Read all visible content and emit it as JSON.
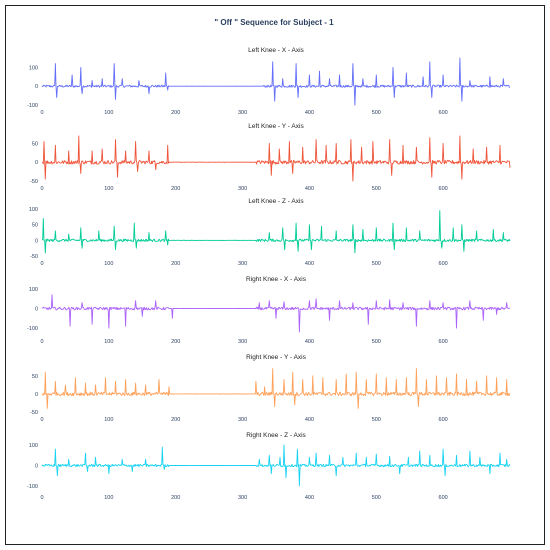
{
  "title": "\" Off \" Sequence for Subject - 1",
  "chart_data": [
    {
      "type": "line",
      "title": "Left Knee - X - Axis",
      "color": "#636efa",
      "xlim": [
        0,
        700
      ],
      "ylim": [
        -100,
        150
      ],
      "x_ticks": [
        0,
        100,
        200,
        300,
        400,
        500,
        600
      ],
      "y_ticks": [
        -100,
        0,
        100
      ],
      "baseline": 0,
      "flat_range": [
        190,
        330
      ],
      "noise": 6,
      "spikes": [
        [
          20,
          120
        ],
        [
          22,
          -60
        ],
        [
          45,
          60
        ],
        [
          58,
          100
        ],
        [
          60,
          -40
        ],
        [
          75,
          30
        ],
        [
          90,
          40
        ],
        [
          108,
          120
        ],
        [
          110,
          -70
        ],
        [
          120,
          40
        ],
        [
          145,
          30
        ],
        [
          160,
          -40
        ],
        [
          185,
          70
        ],
        [
          188,
          -20
        ],
        [
          345,
          130
        ],
        [
          348,
          -80
        ],
        [
          360,
          40
        ],
        [
          380,
          120
        ],
        [
          383,
          -60
        ],
        [
          400,
          60
        ],
        [
          415,
          80
        ],
        [
          430,
          40
        ],
        [
          445,
          60
        ],
        [
          465,
          120
        ],
        [
          468,
          -100
        ],
        [
          480,
          40
        ],
        [
          500,
          60
        ],
        [
          525,
          100
        ],
        [
          527,
          -60
        ],
        [
          545,
          70
        ],
        [
          570,
          50
        ],
        [
          580,
          130
        ],
        [
          583,
          -60
        ],
        [
          600,
          60
        ],
        [
          625,
          150
        ],
        [
          628,
          -80
        ],
        [
          640,
          30
        ],
        [
          670,
          50
        ],
        [
          690,
          40
        ]
      ]
    },
    {
      "type": "line",
      "title": "Left Knee - Y - Axis",
      "color": "#ef553b",
      "xlim": [
        0,
        700
      ],
      "ylim": [
        -50,
        75
      ],
      "x_ticks": [
        0,
        100,
        200,
        300,
        400,
        500,
        600
      ],
      "y_ticks": [
        -50,
        0,
        50
      ],
      "baseline": 0,
      "flat_range": [
        190,
        320
      ],
      "noise": 5,
      "spikes": [
        [
          3,
          55
        ],
        [
          5,
          -45
        ],
        [
          20,
          45
        ],
        [
          40,
          30
        ],
        [
          55,
          70
        ],
        [
          58,
          -30
        ],
        [
          75,
          30
        ],
        [
          90,
          35
        ],
        [
          110,
          60
        ],
        [
          113,
          -40
        ],
        [
          125,
          30
        ],
        [
          140,
          55
        ],
        [
          143,
          -25
        ],
        [
          160,
          30
        ],
        [
          170,
          -20
        ],
        [
          188,
          45
        ],
        [
          340,
          50
        ],
        [
          343,
          -35
        ],
        [
          355,
          35
        ],
        [
          370,
          55
        ],
        [
          375,
          -30
        ],
        [
          390,
          40
        ],
        [
          410,
          60
        ],
        [
          425,
          45
        ],
        [
          440,
          50
        ],
        [
          462,
          60
        ],
        [
          465,
          -50
        ],
        [
          478,
          40
        ],
        [
          495,
          55
        ],
        [
          520,
          60
        ],
        [
          523,
          -35
        ],
        [
          540,
          45
        ],
        [
          560,
          40
        ],
        [
          580,
          65
        ],
        [
          583,
          -40
        ],
        [
          600,
          50
        ],
        [
          625,
          70
        ],
        [
          628,
          -45
        ],
        [
          645,
          35
        ],
        [
          665,
          40
        ],
        [
          685,
          45
        ],
        [
          700,
          -15
        ]
      ]
    },
    {
      "type": "line",
      "title": "Left Knee - Z - Axis",
      "color": "#00cc96",
      "xlim": [
        0,
        700
      ],
      "ylim": [
        -50,
        100
      ],
      "x_ticks": [
        0,
        100,
        200,
        300,
        400,
        500,
        600
      ],
      "y_ticks": [
        -50,
        0,
        50,
        100
      ],
      "baseline": 0,
      "flat_range": [
        190,
        320
      ],
      "noise": 4,
      "spikes": [
        [
          2,
          70
        ],
        [
          5,
          -40
        ],
        [
          20,
          30
        ],
        [
          40,
          20
        ],
        [
          58,
          40
        ],
        [
          60,
          -25
        ],
        [
          85,
          30
        ],
        [
          108,
          45
        ],
        [
          110,
          -30
        ],
        [
          138,
          55
        ],
        [
          141,
          -25
        ],
        [
          160,
          25
        ],
        [
          185,
          30
        ],
        [
          188,
          -15
        ],
        [
          340,
          25
        ],
        [
          360,
          40
        ],
        [
          363,
          -30
        ],
        [
          380,
          55
        ],
        [
          383,
          -35
        ],
        [
          400,
          50
        ],
        [
          403,
          -30
        ],
        [
          418,
          45
        ],
        [
          440,
          30
        ],
        [
          465,
          50
        ],
        [
          468,
          -40
        ],
        [
          480,
          35
        ],
        [
          500,
          40
        ],
        [
          525,
          55
        ],
        [
          527,
          -30
        ],
        [
          545,
          40
        ],
        [
          565,
          30
        ],
        [
          595,
          95
        ],
        [
          598,
          -25
        ],
        [
          615,
          40
        ],
        [
          628,
          50
        ],
        [
          631,
          -35
        ],
        [
          650,
          30
        ],
        [
          675,
          35
        ],
        [
          690,
          25
        ]
      ]
    },
    {
      "type": "line",
      "title": "Right Knee - X - Axis",
      "color": "#ab63fa",
      "xlim": [
        0,
        700
      ],
      "ylim": [
        -130,
        110
      ],
      "x_ticks": [
        0,
        100,
        200,
        300,
        400,
        500,
        600
      ],
      "y_ticks": [
        -100,
        0,
        100
      ],
      "baseline": 0,
      "flat_range": [
        190,
        320
      ],
      "noise": 7,
      "spikes": [
        [
          15,
          70
        ],
        [
          42,
          -90
        ],
        [
          60,
          30
        ],
        [
          75,
          -80
        ],
        [
          100,
          -100
        ],
        [
          125,
          -90
        ],
        [
          140,
          40
        ],
        [
          150,
          -40
        ],
        [
          170,
          40
        ],
        [
          195,
          -50
        ],
        [
          325,
          30
        ],
        [
          340,
          40
        ],
        [
          350,
          -50
        ],
        [
          362,
          35
        ],
        [
          385,
          -120
        ],
        [
          400,
          40
        ],
        [
          410,
          50
        ],
        [
          430,
          -60
        ],
        [
          445,
          40
        ],
        [
          465,
          30
        ],
        [
          488,
          -80
        ],
        [
          500,
          40
        ],
        [
          520,
          45
        ],
        [
          540,
          30
        ],
        [
          560,
          -90
        ],
        [
          580,
          40
        ],
        [
          600,
          30
        ],
        [
          620,
          -100
        ],
        [
          640,
          40
        ],
        [
          660,
          -60
        ],
        [
          680,
          -30
        ],
        [
          695,
          30
        ]
      ]
    },
    {
      "type": "line",
      "title": "Right Knee - Y - Axis",
      "color": "#ffa15a",
      "xlim": [
        0,
        700
      ],
      "ylim": [
        -50,
        80
      ],
      "x_ticks": [
        0,
        100,
        200,
        300,
        400,
        500,
        600
      ],
      "y_ticks": [
        -50,
        0,
        50
      ],
      "baseline": 0,
      "flat_range": [
        190,
        320
      ],
      "noise": 5,
      "spikes": [
        [
          5,
          60
        ],
        [
          8,
          -40
        ],
        [
          20,
          35
        ],
        [
          35,
          25
        ],
        [
          50,
          45
        ],
        [
          65,
          30
        ],
        [
          80,
          25
        ],
        [
          95,
          45
        ],
        [
          110,
          35
        ],
        [
          125,
          40
        ],
        [
          140,
          30
        ],
        [
          155,
          25
        ],
        [
          175,
          40
        ],
        [
          190,
          20
        ],
        [
          320,
          35
        ],
        [
          333,
          20
        ],
        [
          345,
          70
        ],
        [
          348,
          -35
        ],
        [
          362,
          40
        ],
        [
          375,
          60
        ],
        [
          378,
          -30
        ],
        [
          390,
          40
        ],
        [
          405,
          50
        ],
        [
          420,
          45
        ],
        [
          440,
          40
        ],
        [
          455,
          55
        ],
        [
          470,
          60
        ],
        [
          473,
          -40
        ],
        [
          485,
          40
        ],
        [
          500,
          55
        ],
        [
          515,
          45
        ],
        [
          530,
          40
        ],
        [
          545,
          45
        ],
        [
          560,
          70
        ],
        [
          563,
          -35
        ],
        [
          575,
          40
        ],
        [
          590,
          50
        ],
        [
          605,
          45
        ],
        [
          620,
          55
        ],
        [
          635,
          40
        ],
        [
          650,
          35
        ],
        [
          665,
          50
        ],
        [
          680,
          45
        ],
        [
          695,
          40
        ]
      ]
    },
    {
      "type": "line",
      "title": "Right Knee - Z - Axis",
      "color": "#19d3f3",
      "xlim": [
        0,
        700
      ],
      "ylim": [
        -120,
        110
      ],
      "x_ticks": [
        0,
        100,
        200,
        300,
        400,
        500,
        600
      ],
      "y_ticks": [
        -100,
        0,
        100
      ],
      "baseline": 0,
      "flat_range": [
        190,
        320
      ],
      "noise": 6,
      "spikes": [
        [
          20,
          80
        ],
        [
          23,
          -50
        ],
        [
          40,
          30
        ],
        [
          65,
          60
        ],
        [
          68,
          -30
        ],
        [
          80,
          40
        ],
        [
          100,
          -40
        ],
        [
          120,
          30
        ],
        [
          135,
          -30
        ],
        [
          155,
          30
        ],
        [
          180,
          90
        ],
        [
          183,
          -20
        ],
        [
          325,
          30
        ],
        [
          340,
          50
        ],
        [
          343,
          -40
        ],
        [
          356,
          40
        ],
        [
          362,
          100
        ],
        [
          365,
          -60
        ],
        [
          382,
          80
        ],
        [
          385,
          -100
        ],
        [
          400,
          40
        ],
        [
          410,
          60
        ],
        [
          430,
          50
        ],
        [
          440,
          -50
        ],
        [
          450,
          40
        ],
        [
          470,
          60
        ],
        [
          485,
          40
        ],
        [
          500,
          55
        ],
        [
          520,
          45
        ],
        [
          535,
          -40
        ],
        [
          548,
          40
        ],
        [
          565,
          70
        ],
        [
          580,
          50
        ],
        [
          600,
          80
        ],
        [
          603,
          -50
        ],
        [
          620,
          50
        ],
        [
          640,
          70
        ],
        [
          655,
          40
        ],
        [
          670,
          -40
        ],
        [
          685,
          60
        ],
        [
          695,
          30
        ]
      ]
    }
  ]
}
